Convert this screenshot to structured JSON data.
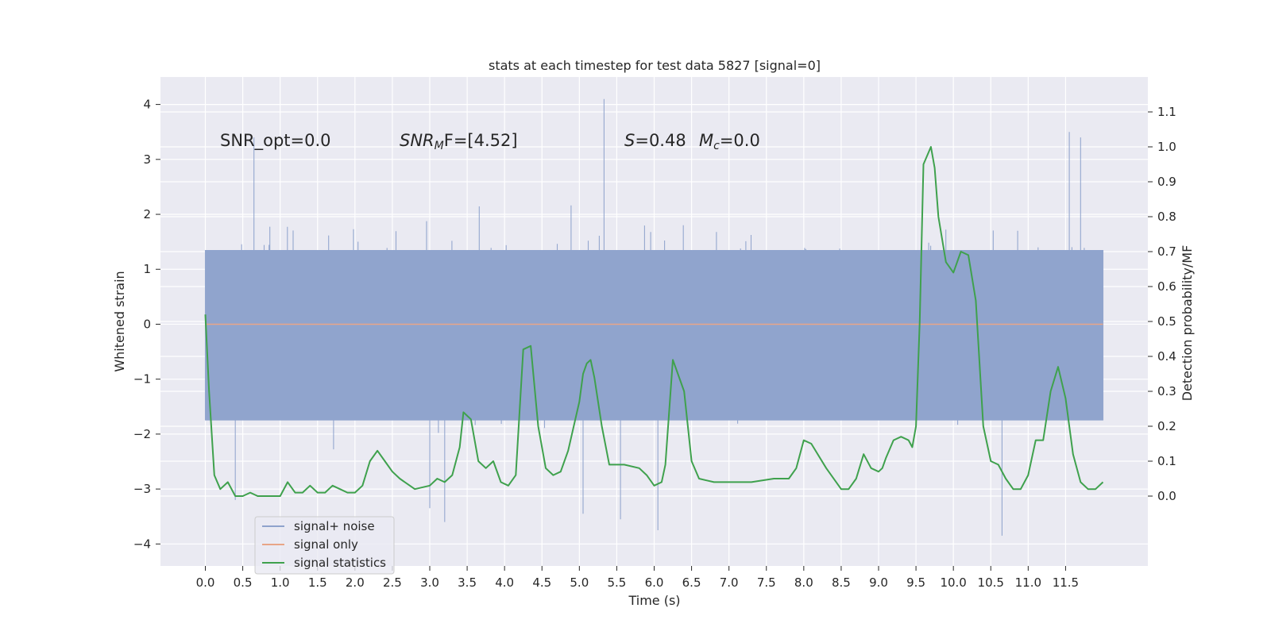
{
  "chart_data": {
    "type": "line",
    "title": "stats at each timestep for test data 5827 [signal=0]",
    "xlabel": "Time (s)",
    "ylabel_left": "Whitened strain",
    "ylabel_right": "Detection probability/MF",
    "xlim": [
      -0.6,
      12.6
    ],
    "ylim_left": [
      -4.4,
      4.5
    ],
    "ylim_right": [
      -0.2,
      1.2
    ],
    "x_ticks": [
      "0.0",
      "0.5",
      "1.0",
      "1.5",
      "2.0",
      "2.5",
      "3.0",
      "3.5",
      "4.0",
      "4.5",
      "5.0",
      "5.5",
      "6.0",
      "6.5",
      "7.0",
      "7.5",
      "8.0",
      "8.5",
      "9.0",
      "9.5",
      "10.0",
      "10.5",
      "11.0",
      "11.5"
    ],
    "y_ticks_left": [
      "−4",
      "−3",
      "−2",
      "−1",
      "0",
      "1",
      "2",
      "3",
      "4"
    ],
    "y_ticks_right": [
      "0.0",
      "0.1",
      "0.2",
      "0.3",
      "0.4",
      "0.5",
      "0.6",
      "0.7",
      "0.8",
      "0.9",
      "1.0",
      "1.1"
    ],
    "annotations": {
      "snr_opt": "SNR_opt=0.0",
      "snr_mf_base": "SNR",
      "snr_mf_sub": "M",
      "snr_mf_rest": "F=[4.52]",
      "s_label": "S",
      "s_rest": "=0.48",
      "mc_base": "M",
      "mc_sub": "c",
      "mc_rest": "=0.0"
    },
    "legend": {
      "location": "lower left",
      "entries": [
        {
          "label": "signal+ noise",
          "color": "#8fa3cc"
        },
        {
          "label": "signal only",
          "color": "#e8a587"
        },
        {
          "label": "signal statistics",
          "color": "#3fa14d"
        }
      ]
    },
    "series": [
      {
        "name": "signal+ noise",
        "axis": "left",
        "description": "whitened noise trace, roughly between -3 and 3",
        "x_range": [
          0.0,
          12.0
        ],
        "core_band": [
          -1.75,
          1.35
        ],
        "peaks": [
          {
            "x": 5.33,
            "y": 4.1
          },
          {
            "x": 11.55,
            "y": 3.5
          },
          {
            "x": 11.7,
            "y": 3.4
          },
          {
            "x": 0.65,
            "y": 3.4
          },
          {
            "x": 10.65,
            "y": -3.85
          },
          {
            "x": 6.05,
            "y": -3.75
          },
          {
            "x": 5.55,
            "y": -3.55
          },
          {
            "x": 3.2,
            "y": -3.6
          },
          {
            "x": 5.05,
            "y": -3.45
          },
          {
            "x": 0.4,
            "y": -3.2
          },
          {
            "x": 3.0,
            "y": -3.35
          }
        ]
      },
      {
        "name": "signal only",
        "axis": "left",
        "x": [
          0.0,
          12.0
        ],
        "y": [
          0.0,
          0.0
        ]
      },
      {
        "name": "signal statistics",
        "axis": "right",
        "x": [
          0.0,
          0.05,
          0.12,
          0.2,
          0.3,
          0.4,
          0.5,
          0.6,
          0.7,
          0.8,
          0.9,
          1.0,
          1.1,
          1.2,
          1.3,
          1.4,
          1.5,
          1.6,
          1.7,
          1.8,
          1.9,
          2.0,
          2.1,
          2.2,
          2.3,
          2.4,
          2.5,
          2.6,
          2.8,
          3.0,
          3.1,
          3.2,
          3.3,
          3.4,
          3.45,
          3.55,
          3.65,
          3.75,
          3.85,
          3.95,
          4.05,
          4.15,
          4.25,
          4.35,
          4.45,
          4.55,
          4.65,
          4.75,
          4.85,
          5.0,
          5.05,
          5.1,
          5.15,
          5.2,
          5.3,
          5.4,
          5.6,
          5.8,
          5.9,
          6.0,
          6.1,
          6.15,
          6.25,
          6.3,
          6.4,
          6.5,
          6.6,
          6.8,
          7.0,
          7.3,
          7.6,
          7.8,
          7.9,
          8.0,
          8.1,
          8.3,
          8.5,
          8.6,
          8.7,
          8.8,
          8.9,
          9.0,
          9.05,
          9.1,
          9.2,
          9.3,
          9.4,
          9.45,
          9.5,
          9.55,
          9.6,
          9.7,
          9.75,
          9.8,
          9.9,
          10.0,
          10.1,
          10.2,
          10.3,
          10.4,
          10.5,
          10.6,
          10.7,
          10.8,
          10.9,
          11.0,
          11.1,
          11.2,
          11.3,
          11.4,
          11.5,
          11.6,
          11.7,
          11.8,
          11.9,
          12.0
        ],
        "y": [
          0.52,
          0.3,
          0.06,
          0.02,
          0.04,
          0.0,
          0.0,
          0.01,
          0.0,
          0.0,
          0.0,
          0.0,
          0.04,
          0.01,
          0.01,
          0.03,
          0.01,
          0.01,
          0.03,
          0.02,
          0.01,
          0.01,
          0.03,
          0.1,
          0.13,
          0.1,
          0.07,
          0.05,
          0.02,
          0.03,
          0.05,
          0.04,
          0.06,
          0.14,
          0.24,
          0.22,
          0.1,
          0.08,
          0.1,
          0.04,
          0.03,
          0.06,
          0.42,
          0.43,
          0.2,
          0.08,
          0.06,
          0.07,
          0.13,
          0.27,
          0.35,
          0.38,
          0.39,
          0.34,
          0.2,
          0.09,
          0.09,
          0.08,
          0.06,
          0.03,
          0.04,
          0.09,
          0.39,
          0.36,
          0.3,
          0.1,
          0.05,
          0.04,
          0.04,
          0.04,
          0.05,
          0.05,
          0.08,
          0.16,
          0.15,
          0.08,
          0.02,
          0.02,
          0.05,
          0.12,
          0.08,
          0.07,
          0.08,
          0.11,
          0.16,
          0.17,
          0.16,
          0.14,
          0.2,
          0.5,
          0.95,
          1.0,
          0.94,
          0.8,
          0.67,
          0.64,
          0.7,
          0.69,
          0.56,
          0.2,
          0.1,
          0.09,
          0.05,
          0.02,
          0.02,
          0.06,
          0.16,
          0.16,
          0.3,
          0.37,
          0.28,
          0.12,
          0.04,
          0.02,
          0.02,
          0.04
        ]
      }
    ]
  }
}
